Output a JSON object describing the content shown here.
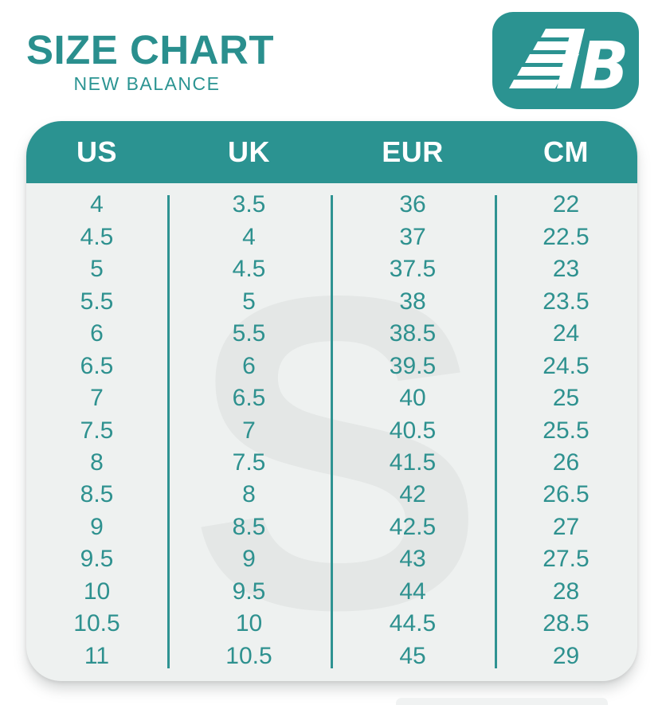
{
  "page": {
    "title": "SIZE CHART",
    "subtitle": "NEW BALANCE",
    "watermark_letter": "S"
  },
  "logo": {
    "name": "new-balance-nb-logo"
  },
  "colors": {
    "teal_header": "#2b9391",
    "teal_text": "#2e918f",
    "teal_title": "#2a8f8e",
    "body_bg": "#eef1f0",
    "watermark_gray": "#e4e7e6",
    "white": "#ffffff"
  },
  "chart_data": {
    "type": "table",
    "title": "SIZE CHART",
    "subtitle": "NEW BALANCE",
    "columns": [
      "US",
      "UK",
      "EUR",
      "CM"
    ],
    "rows": [
      [
        "4",
        "3.5",
        "36",
        "22"
      ],
      [
        "4.5",
        "4",
        "37",
        "22.5"
      ],
      [
        "5",
        "4.5",
        "37.5",
        "23"
      ],
      [
        "5.5",
        "5",
        "38",
        "23.5"
      ],
      [
        "6",
        "5.5",
        "38.5",
        "24"
      ],
      [
        "6.5",
        "6",
        "39.5",
        "24.5"
      ],
      [
        "7",
        "6.5",
        "40",
        "25"
      ],
      [
        "7.5",
        "7",
        "40.5",
        "25.5"
      ],
      [
        "8",
        "7.5",
        "41.5",
        "26"
      ],
      [
        "8.5",
        "8",
        "42",
        "26.5"
      ],
      [
        "9",
        "8.5",
        "42.5",
        "27"
      ],
      [
        "9.5",
        "9",
        "43",
        "27.5"
      ],
      [
        "10",
        "9.5",
        "44",
        "28"
      ],
      [
        "10.5",
        "10",
        "44.5",
        "28.5"
      ],
      [
        "11",
        "10.5",
        "45",
        "29"
      ]
    ],
    "layout": {
      "header_background": "#2b9391",
      "column_dividers": true,
      "rounded_corners": true
    }
  }
}
